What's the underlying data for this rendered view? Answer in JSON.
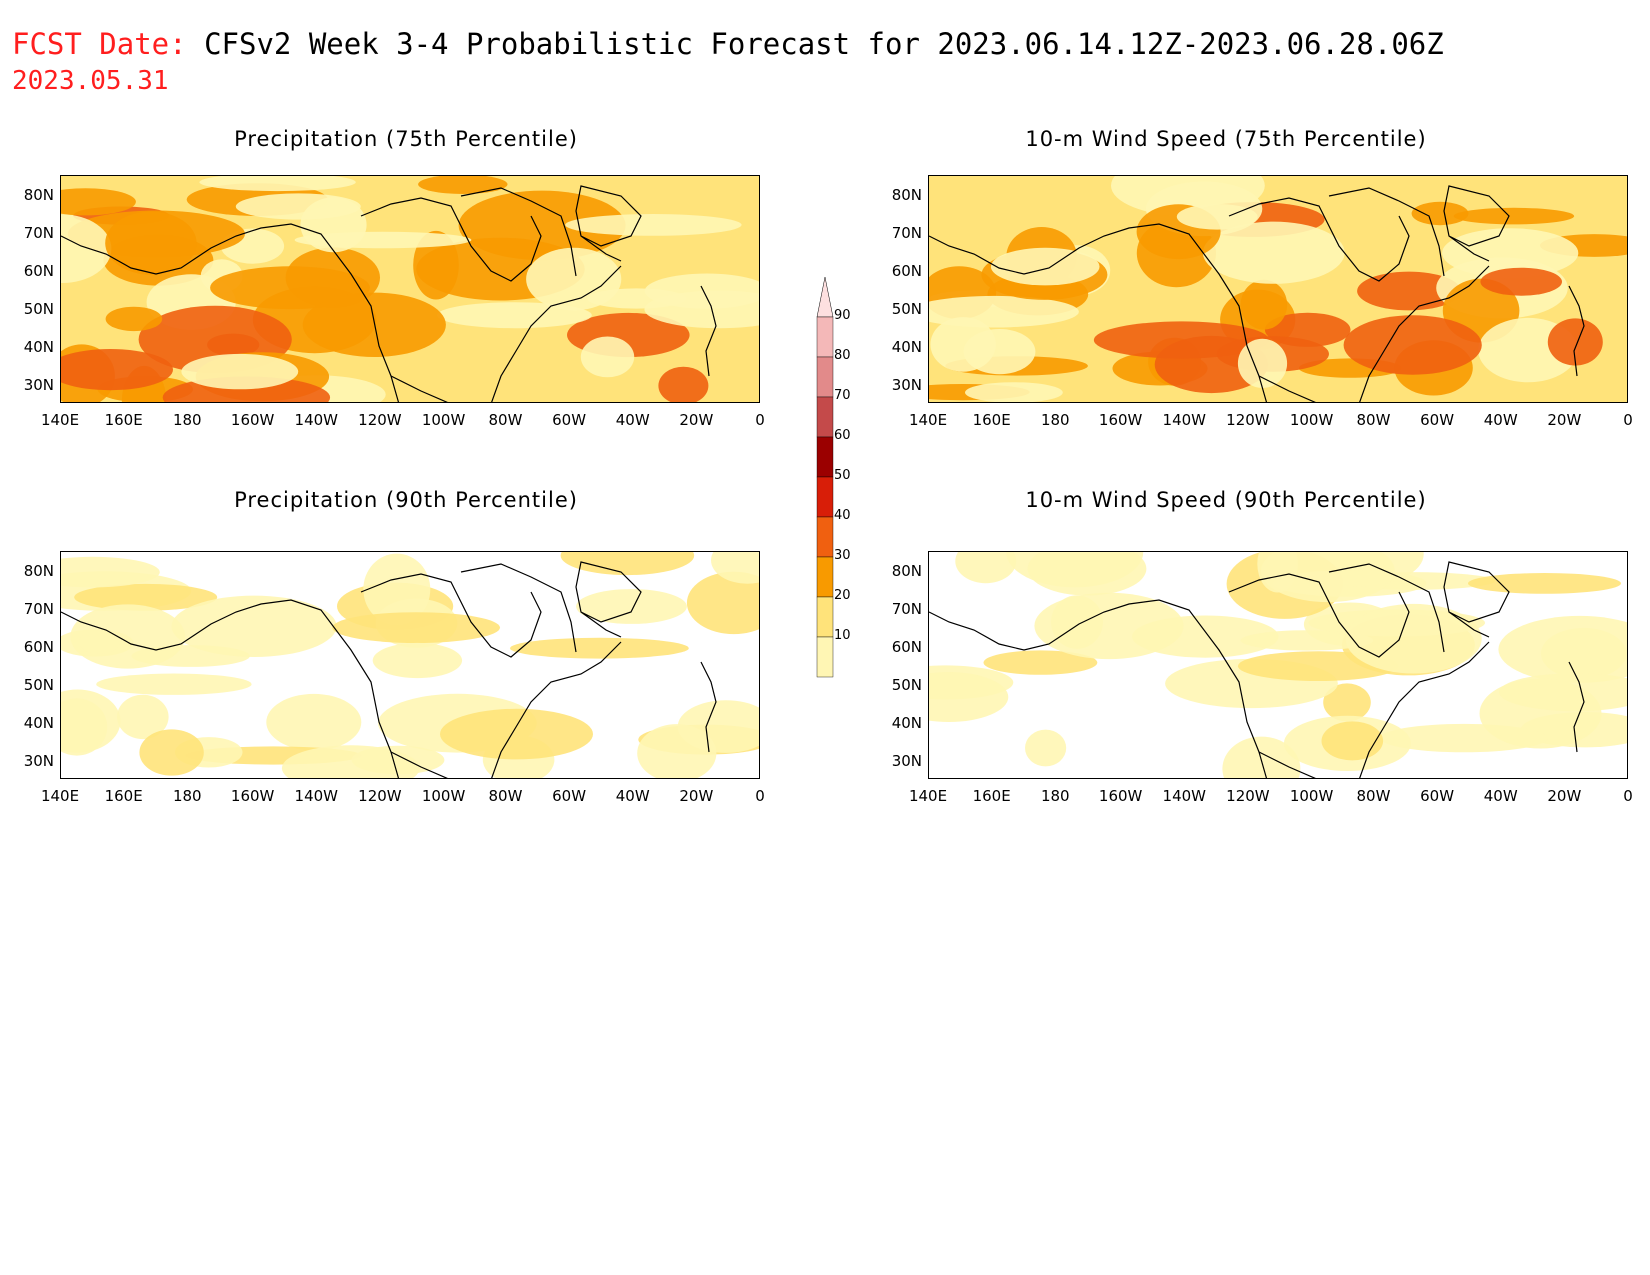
{
  "header": {
    "label": "FCST Date:",
    "title": "CFSv2 Week 3-4 Probabilistic Forecast for 2023.06.14.12Z-2023.06.28.06Z",
    "forecast_date": "2023.05.31"
  },
  "panels": [
    {
      "id": "precip75",
      "title": "Precipitation (75th Percentile)",
      "intensity": "high"
    },
    {
      "id": "wind75",
      "title": "10-m Wind Speed (75th Percentile)",
      "intensity": "high"
    },
    {
      "id": "precip90",
      "title": "Precipitation (90th Percentile)",
      "intensity": "low"
    },
    {
      "id": "wind90",
      "title": "10-m Wind Speed (90th Percentile)",
      "intensity": "low"
    }
  ],
  "axes": {
    "lon_labels": [
      "140E",
      "160E",
      "180",
      "160W",
      "140W",
      "120W",
      "100W",
      "80W",
      "60W",
      "40W",
      "20W",
      "0"
    ],
    "lat_labels": [
      "80N",
      "70N",
      "60N",
      "50N",
      "40N",
      "30N"
    ]
  },
  "colorbar": {
    "labels": [
      "90",
      "80",
      "70",
      "60",
      "50",
      "40",
      "30",
      "20",
      "10"
    ],
    "colors": [
      "#f4b8b8",
      "#e28a8a",
      "#c44a4a",
      "#9b0000",
      "#d81e08",
      "#f06010",
      "#f89a00",
      "#ffe37a",
      "#fff6b4"
    ]
  },
  "chart_data": {
    "type": "heatmap",
    "colorbar_levels": [
      10,
      20,
      30,
      40,
      50,
      60,
      70,
      80,
      90
    ],
    "x_range": [
      "140E",
      "0"
    ],
    "y_range": [
      "30N",
      "80N"
    ]
  }
}
